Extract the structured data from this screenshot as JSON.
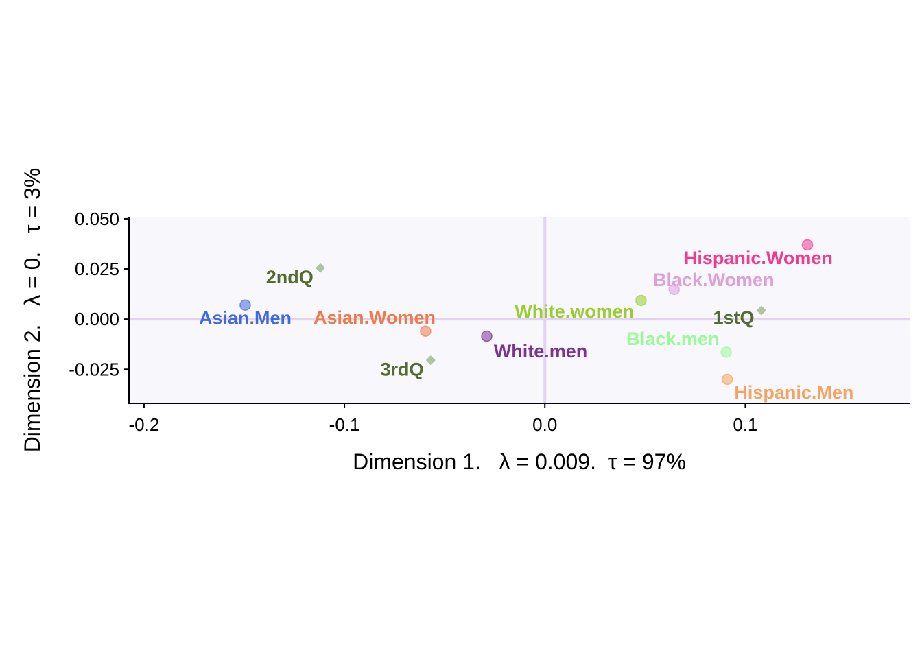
{
  "chart_data": {
    "type": "scatter",
    "title": "",
    "xlabel": "Dimension 1.   λ = 0.009.  τ = 97%",
    "ylabel": "Dimension 2.   λ = 0.   τ = 3%",
    "xlim": [
      -0.2075,
      0.182
    ],
    "ylim": [
      -0.042,
      0.051
    ],
    "x_ticks": [
      {
        "value": -0.2,
        "label": "-0.2"
      },
      {
        "value": -0.1,
        "label": "-0.1"
      },
      {
        "value": 0.0,
        "label": "0.0"
      },
      {
        "value": 0.1,
        "label": "0.1"
      }
    ],
    "y_ticks": [
      {
        "value": 0.05,
        "label": "0.050"
      },
      {
        "value": 0.025,
        "label": "0.025"
      },
      {
        "value": 0.0,
        "label": "0.000"
      },
      {
        "value": -0.025,
        "label": "-0.025"
      }
    ],
    "grid": false,
    "panel_background": "#f8f7fc",
    "reference_line_color": "#e3d3f2",
    "row_points": [
      {
        "name": "Asian.Men",
        "x": -0.1495,
        "y": 0.007,
        "color": "#4169e1",
        "label_anchor": "middle",
        "label_dx": 0,
        "label_dy": -0.0065
      },
      {
        "name": "Asian.Women",
        "x": -0.0595,
        "y": -0.006,
        "color": "#ee7a4a",
        "label_anchor": "end",
        "label_dx": 0.005,
        "label_dy": 0.0067
      },
      {
        "name": "White.men",
        "x": -0.029,
        "y": -0.0085,
        "color": "#7b3294",
        "label_anchor": "start",
        "label_dx": 0.0035,
        "label_dy": -0.0075
      },
      {
        "name": "White.women",
        "x": 0.048,
        "y": 0.0093,
        "color": "#9acd32",
        "label_anchor": "end",
        "label_dx": -0.0035,
        "label_dy": -0.0055
      },
      {
        "name": "Black.Women",
        "x": 0.0645,
        "y": 0.0148,
        "color": "#dda0dd",
        "label_anchor": "start",
        "label_dx": -0.0105,
        "label_dy": 0.0048
      },
      {
        "name": "Black.men",
        "x": 0.0905,
        "y": -0.0165,
        "color": "#98fb98",
        "label_anchor": "end",
        "label_dx": -0.0035,
        "label_dy": 0.0067
      },
      {
        "name": "Hispanic.Women",
        "x": 0.131,
        "y": 0.037,
        "color": "#f03b8f",
        "label_anchor": "middle",
        "label_dx": -0.0245,
        "label_dy": -0.0065
      },
      {
        "name": "Hispanic.Men",
        "x": 0.091,
        "y": -0.03,
        "color": "#f4a460",
        "label_anchor": "start",
        "label_dx": 0.0035,
        "label_dy": -0.0065
      }
    ],
    "column_points": [
      {
        "name": "1stQ",
        "x": 0.108,
        "y": 0.0043,
        "color": "#556b2f",
        "label_anchor": "end",
        "label_dx": -0.0035,
        "label_dy": -0.0035
      },
      {
        "name": "2ndQ",
        "x": -0.112,
        "y": 0.0255,
        "color": "#556b2f",
        "label_anchor": "end",
        "label_dx": -0.0035,
        "label_dy": -0.0046
      },
      {
        "name": "3rdQ",
        "x": -0.057,
        "y": -0.0205,
        "color": "#556b2f",
        "label_anchor": "end",
        "label_dx": -0.0035,
        "label_dy": -0.0046
      }
    ]
  }
}
